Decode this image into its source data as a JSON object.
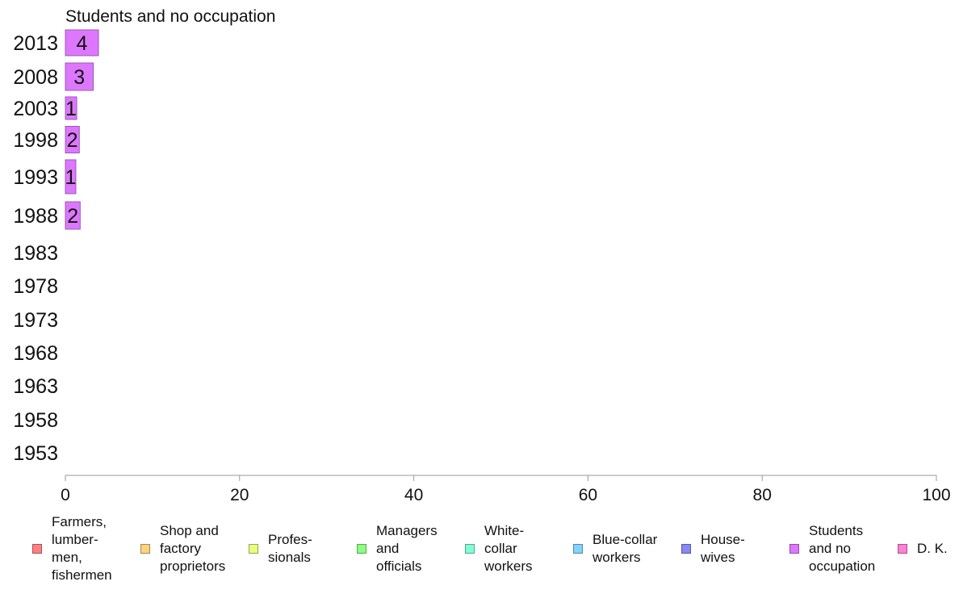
{
  "chart_data": {
    "type": "bar",
    "orientation": "horizontal",
    "title": "Students and no occupation",
    "categories": [
      "2013",
      "2008",
      "2003",
      "1998",
      "1993",
      "1988",
      "1983",
      "1978",
      "1973",
      "1968",
      "1963",
      "1958",
      "1953"
    ],
    "series": [
      {
        "name": "Students and no occupation",
        "color": "#dd77ff",
        "values": [
          3.8,
          3.2,
          1.3,
          1.6,
          1.2,
          1.7,
          0,
          0,
          0,
          0,
          0,
          0,
          0
        ],
        "data_labels": [
          "4",
          "3",
          "1",
          "2",
          "1",
          "2",
          "",
          "",
          "",
          "",
          "",
          "",
          ""
        ]
      }
    ],
    "xlim": [
      0,
      100
    ],
    "xticks": [
      "0",
      "20",
      "40",
      "60",
      "80",
      "100"
    ],
    "grid": false,
    "legend_position": "bottom"
  },
  "legend": [
    {
      "label": "Farmers,\nlumber-\nmen,\nfishermen",
      "color": "#ff8080"
    },
    {
      "label": "Shop and\nfactory\nproprietors",
      "color": "#ffd27f"
    },
    {
      "label": "Profes-\nsionals",
      "color": "#e5ff80"
    },
    {
      "label": "Managers\nand\nofficials",
      "color": "#8aff80"
    },
    {
      "label": "White-\ncollar\nworkers",
      "color": "#80ffd4"
    },
    {
      "label": "Blue-collar\nworkers",
      "color": "#80d4ff"
    },
    {
      "label": "House-\nwives",
      "color": "#8888f4"
    },
    {
      "label": "Students\nand no\noccupation",
      "color": "#dd77ff"
    },
    {
      "label": "D. K.",
      "color": "#ff80d6"
    }
  ]
}
